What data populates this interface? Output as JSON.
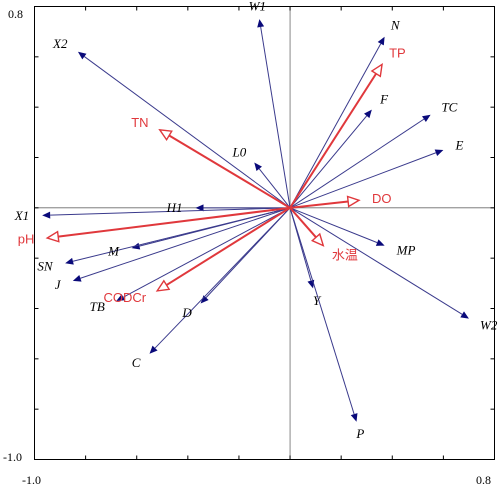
{
  "chart_data": {
    "type": "scatter",
    "subtype": "biplot",
    "xlim": [
      -1.0,
      0.8
    ],
    "ylim": [
      -1.0,
      0.8
    ],
    "tick_labels": {
      "x_min": "-1.0",
      "x_max": "0.8",
      "y_min": "-1.0",
      "y_max": "0.8"
    },
    "grid": false,
    "colors": {
      "species_line": "#3a3a8c",
      "species_head": "#0a0a7a",
      "env": "#e0383c",
      "frame": "#000000",
      "axis_line": "#6a6a6a"
    },
    "species": [
      {
        "label": "W1",
        "x": -0.12,
        "y": 0.75
      },
      {
        "label": "X2",
        "x": -0.83,
        "y": 0.62
      },
      {
        "label": "N",
        "x": 0.37,
        "y": 0.68
      },
      {
        "label": "F",
        "x": 0.32,
        "y": 0.39
      },
      {
        "label": "TC",
        "x": 0.55,
        "y": 0.37
      },
      {
        "label": "E",
        "x": 0.6,
        "y": 0.23
      },
      {
        "label": "L0",
        "x": -0.14,
        "y": 0.18
      },
      {
        "label": "H1",
        "x": -0.37,
        "y": 0.0
      },
      {
        "label": "X1",
        "x": -0.97,
        "y": -0.03
      },
      {
        "label": "M",
        "x": -0.62,
        "y": -0.16
      },
      {
        "label": "SN",
        "x": -0.88,
        "y": -0.22
      },
      {
        "label": "J",
        "x": -0.85,
        "y": -0.29
      },
      {
        "label": "TB",
        "x": -0.68,
        "y": -0.37
      },
      {
        "label": "D",
        "x": -0.35,
        "y": -0.38
      },
      {
        "label": "C",
        "x": -0.55,
        "y": -0.58
      },
      {
        "label": "Y",
        "x": 0.09,
        "y": -0.32
      },
      {
        "label": "MP",
        "x": 0.37,
        "y": -0.15
      },
      {
        "label": "W2",
        "x": 0.7,
        "y": -0.44
      },
      {
        "label": "P",
        "x": 0.26,
        "y": -0.85
      }
    ],
    "environment": [
      {
        "label": "TP",
        "x": 0.36,
        "y": 0.57
      },
      {
        "label": "TN",
        "x": -0.51,
        "y": 0.31
      },
      {
        "label": "DO",
        "x": 0.27,
        "y": 0.03
      },
      {
        "label": "pH",
        "x": -0.95,
        "y": -0.12
      },
      {
        "label": "CODCr",
        "x": -0.52,
        "y": -0.33
      },
      {
        "label": "水温",
        "x": 0.13,
        "y": -0.15
      }
    ]
  }
}
